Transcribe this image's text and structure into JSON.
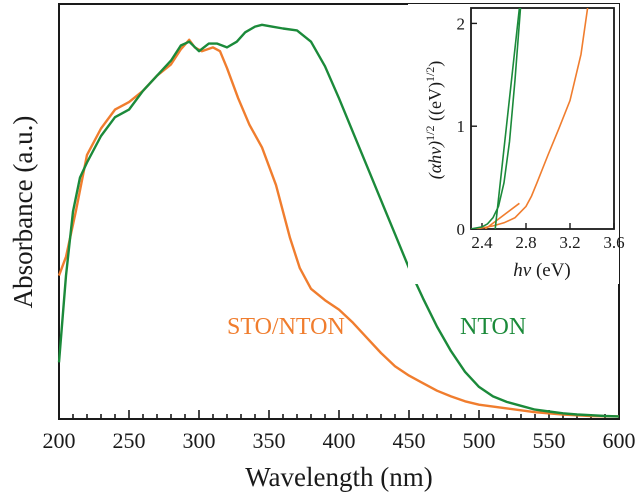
{
  "chart_data": [
    {
      "type": "line",
      "xlabel": "Wavelength (nm)",
      "ylabel": "Absorbance (a.u.)",
      "xlim": [
        200,
        600
      ],
      "ylim": [
        0,
        1.1
      ],
      "xticks": [
        "200",
        "250",
        "300",
        "350",
        "400",
        "450",
        "500",
        "550",
        "600"
      ],
      "y_tick_labels": false,
      "grid": false,
      "series": [
        {
          "name": "STO/NTON",
          "color": "#f07d2e",
          "x": [
            200,
            205,
            212,
            220,
            230,
            240,
            250,
            260,
            270,
            280,
            287,
            293,
            297,
            302,
            310,
            315,
            320,
            328,
            336,
            345,
            355,
            365,
            372,
            380,
            390,
            400,
            410,
            420,
            430,
            440,
            450,
            460,
            470,
            480,
            490,
            500,
            520,
            540,
            560,
            580,
            600
          ],
          "y": [
            0.38,
            0.43,
            0.55,
            0.7,
            0.77,
            0.82,
            0.84,
            0.87,
            0.91,
            0.94,
            0.98,
            1.005,
            0.985,
            0.975,
            0.985,
            0.975,
            0.93,
            0.85,
            0.78,
            0.72,
            0.62,
            0.48,
            0.4,
            0.345,
            0.315,
            0.29,
            0.255,
            0.215,
            0.175,
            0.14,
            0.115,
            0.095,
            0.075,
            0.06,
            0.047,
            0.038,
            0.028,
            0.018,
            0.012,
            0.008,
            0.007
          ]
        },
        {
          "name": "NTON",
          "color": "#1b8a3a",
          "x": [
            200,
            205,
            210,
            215,
            220,
            230,
            240,
            250,
            260,
            270,
            280,
            287,
            293,
            300,
            307,
            313,
            320,
            327,
            333,
            340,
            345,
            352,
            360,
            370,
            380,
            390,
            400,
            410,
            420,
            430,
            440,
            450,
            460,
            470,
            480,
            490,
            500,
            510,
            520,
            530,
            540,
            550,
            560,
            570,
            580,
            590,
            600
          ],
          "y": [
            0.15,
            0.38,
            0.55,
            0.64,
            0.68,
            0.75,
            0.8,
            0.82,
            0.87,
            0.91,
            0.95,
            0.99,
            1.0,
            0.975,
            0.995,
            0.995,
            0.985,
            1.0,
            1.025,
            1.04,
            1.045,
            1.04,
            1.035,
            1.03,
            1.0,
            0.935,
            0.85,
            0.76,
            0.67,
            0.58,
            0.49,
            0.4,
            0.32,
            0.245,
            0.18,
            0.125,
            0.085,
            0.06,
            0.045,
            0.035,
            0.025,
            0.02,
            0.015,
            0.012,
            0.01,
            0.008,
            0.007
          ]
        }
      ]
    },
    {
      "type": "line",
      "xlabel": "hν (eV)",
      "ylabel": "(αhν)^1/2 ((eV)^1/2)",
      "xlim": [
        2.3,
        3.6
      ],
      "ylim": [
        0,
        2.15
      ],
      "xticks": [
        "2.4",
        "2.8",
        "3.2",
        "3.6"
      ],
      "yticks": [
        "0",
        "1",
        "2"
      ],
      "series": [
        {
          "name": "STO/NTON",
          "color": "#f07d2e",
          "x": [
            2.3,
            2.4,
            2.5,
            2.6,
            2.7,
            2.8,
            2.85,
            2.9,
            3.0,
            3.1,
            3.2,
            3.3,
            3.36
          ],
          "y": [
            0.0,
            0.01,
            0.03,
            0.06,
            0.11,
            0.22,
            0.32,
            0.45,
            0.72,
            0.98,
            1.25,
            1.7,
            2.15
          ]
        },
        {
          "name": "STO/NTON fit",
          "color": "#f07d2e",
          "x": [
            2.43,
            2.74
          ],
          "y": [
            0.0,
            0.25
          ]
        },
        {
          "name": "NTON",
          "color": "#1b8a3a",
          "x": [
            2.3,
            2.4,
            2.45,
            2.5,
            2.55,
            2.6,
            2.65,
            2.7,
            2.75
          ],
          "y": [
            0.0,
            0.02,
            0.05,
            0.11,
            0.22,
            0.45,
            0.85,
            1.45,
            2.15
          ]
        },
        {
          "name": "NTON fit",
          "color": "#1b8a3a",
          "x": [
            2.52,
            2.74
          ],
          "y": [
            0.0,
            2.15
          ]
        }
      ]
    }
  ],
  "labels": {
    "sto_nton": "STO/NTON",
    "nton": "NTON",
    "colors": {
      "sto_nton": "#f07d2e",
      "nton": "#1b8a3a"
    }
  }
}
